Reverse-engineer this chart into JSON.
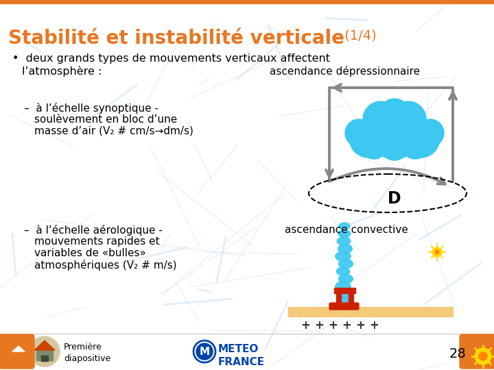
{
  "title_main": "Stabilité et instabilité verticale",
  "title_part": " (1/4)",
  "title_color_main": "#E87722",
  "title_color_part": "#E87722",
  "bg_color": "#f0f4fa",
  "bullet_text": "deux grands types de mouvements verticaux affectent\nl’atmosphère :",
  "label_ascendance_dep": "ascendance dépressionnaire",
  "label_D": "D",
  "label_ascendance_conv": "ascendance convective",
  "footer_text_left": "Première\ndiapositive",
  "footer_page": "28",
  "nav_color": "#E87722",
  "cloud_color": "#3CC8F0",
  "arrow_color": "#888888",
  "plus_color": "#333333",
  "ground_color": "#F5C97A",
  "convective_color": "#3CC8F0",
  "red_color": "#CC2200",
  "line_color": "#b8d0e8"
}
